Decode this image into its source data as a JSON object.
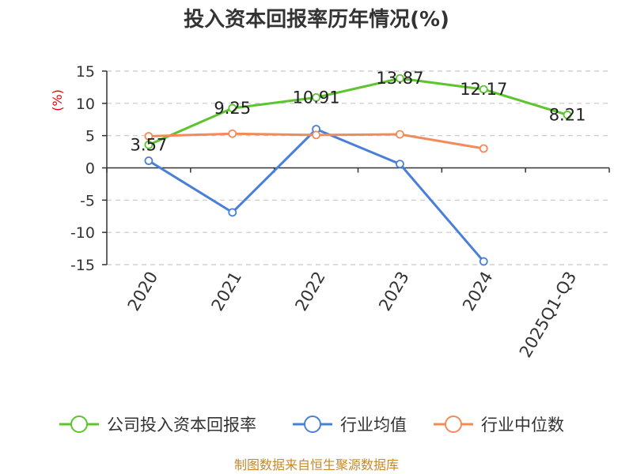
{
  "chart_data": {
    "type": "line",
    "title": "投入资本回报率历年情况(%)",
    "ylabel": "(%)",
    "categories": [
      "2020",
      "2021",
      "2022",
      "2023",
      "2024",
      "2025Q1-Q3"
    ],
    "ylim": [
      -15,
      15
    ],
    "yticks": [
      15,
      10,
      5,
      0,
      -5,
      -10,
      -15
    ],
    "grid": true,
    "legend_position": "bottom",
    "series": [
      {
        "name": "公司投入资本回报率",
        "color": "#5cc52e",
        "values": [
          3.57,
          9.25,
          10.91,
          13.87,
          12.17,
          8.21
        ],
        "labels": [
          "3.57",
          "9.25",
          "10.91",
          "13.87",
          "12.17",
          "8.21"
        ]
      },
      {
        "name": "行业均值",
        "color": "#4a7fd9",
        "values": [
          1.1,
          -6.9,
          6.0,
          0.6,
          -14.5,
          null
        ]
      },
      {
        "name": "行业中位数",
        "color": "#f28b5a",
        "values": [
          4.9,
          5.3,
          5.1,
          5.2,
          3.0,
          null
        ]
      }
    ]
  },
  "source": "制图数据来自恒生聚源数据库"
}
